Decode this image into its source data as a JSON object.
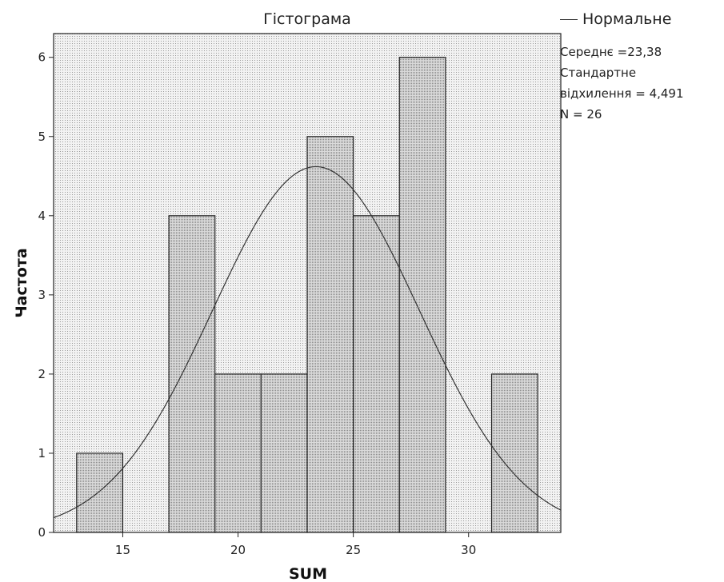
{
  "chart_data": {
    "type": "bar",
    "title": "Гістограма",
    "xlabel": "SUM",
    "ylabel": "Частота",
    "xlim": [
      12,
      34
    ],
    "ylim": [
      0,
      6.3
    ],
    "xticks": [
      15,
      20,
      25,
      30
    ],
    "yticks": [
      0,
      1,
      2,
      3,
      4,
      5,
      6
    ],
    "bins": [
      {
        "from": 13,
        "to": 15,
        "value": 1
      },
      {
        "from": 15,
        "to": 17,
        "value": 0
      },
      {
        "from": 17,
        "to": 19,
        "value": 4
      },
      {
        "from": 19,
        "to": 21,
        "value": 2
      },
      {
        "from": 21,
        "to": 23,
        "value": 2
      },
      {
        "from": 23,
        "to": 25,
        "value": 5
      },
      {
        "from": 25,
        "to": 27,
        "value": 4
      },
      {
        "from": 27,
        "to": 29,
        "value": 6
      },
      {
        "from": 29,
        "to": 31,
        "value": 0
      },
      {
        "from": 31,
        "to": 33,
        "value": 2
      }
    ],
    "normal_curve": {
      "name": "Нормальне",
      "mean": 23.38,
      "std": 4.491,
      "n": 26,
      "bin_width": 2
    },
    "legend_position": "right",
    "grid": false,
    "colors": {
      "bar_fill": "#d0d0d0",
      "plot_bg": "#ececec",
      "curve": "#333333",
      "border": "#222222"
    }
  },
  "legend": {
    "series_label": "Нормальне",
    "mean_text": "Середнє =23,38",
    "std_line1": "Стандартне",
    "std_line2": "відхилення = 4,491",
    "n_text": "N = 26"
  }
}
